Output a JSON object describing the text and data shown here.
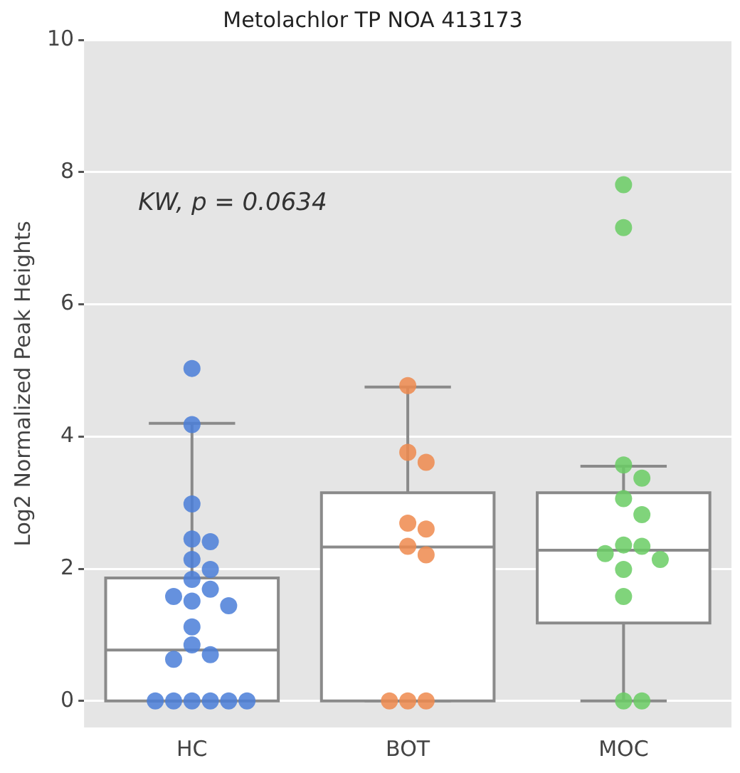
{
  "chart_data": {
    "type": "box",
    "title": "Metolachlor TP NOA 413173",
    "ylabel": "Log2 Normalized Peak Heights",
    "categories": [
      "HC",
      "BOT",
      "MOC"
    ],
    "boxes": [
      {
        "low": 0,
        "q1": 0,
        "median": 0.77,
        "q3": 1.86,
        "high": 4.2
      },
      {
        "low": 0,
        "q1": 0,
        "median": 2.33,
        "q3": 3.15,
        "high": 4.75
      },
      {
        "low": 0,
        "q1": 1.18,
        "median": 2.28,
        "q3": 3.15,
        "high": 3.55
      }
    ],
    "series": [
      {
        "type": "scatter",
        "color": "#4a7ed8",
        "x": [
          "HC",
          "HC",
          "HC",
          "HC",
          "HC",
          "HC",
          "HC",
          "HC",
          "HC",
          "HC",
          "HC",
          "HC",
          "HC",
          "HC",
          "HC",
          "HC",
          "HC",
          "HC",
          "HC",
          "HC",
          "HC",
          "HC"
        ],
        "values": [
          5.03,
          4.18,
          2.98,
          2.45,
          2.41,
          2.14,
          1.99,
          1.84,
          1.69,
          1.58,
          1.51,
          1.44,
          1.12,
          0.85,
          0.7,
          0.63,
          0,
          0,
          0,
          0,
          0,
          0
        ]
      },
      {
        "type": "scatter",
        "color": "#ef8a4e",
        "x": [
          "BOT",
          "BOT",
          "BOT",
          "BOT",
          "BOT",
          "BOT",
          "BOT",
          "BOT",
          "BOT",
          "BOT"
        ],
        "values": [
          4.77,
          3.76,
          3.61,
          2.69,
          2.6,
          2.34,
          2.21,
          0,
          0,
          0
        ]
      },
      {
        "type": "scatter",
        "color": "#6acc64",
        "x": [
          "MOC",
          "MOC",
          "MOC",
          "MOC",
          "MOC",
          "MOC",
          "MOC",
          "MOC",
          "MOC",
          "MOC",
          "MOC",
          "MOC",
          "MOC",
          "MOC"
        ],
        "values": [
          7.81,
          7.16,
          3.57,
          3.37,
          3.06,
          2.82,
          2.36,
          2.34,
          2.23,
          2.14,
          1.99,
          1.58,
          0,
          0
        ]
      }
    ],
    "ylim": [
      -0.4,
      10
    ],
    "yticks": [
      0,
      2,
      4,
      6,
      8,
      10
    ],
    "grid": "y",
    "marker": "circle",
    "annotations": [
      "KW, p = 0.0634"
    ]
  }
}
